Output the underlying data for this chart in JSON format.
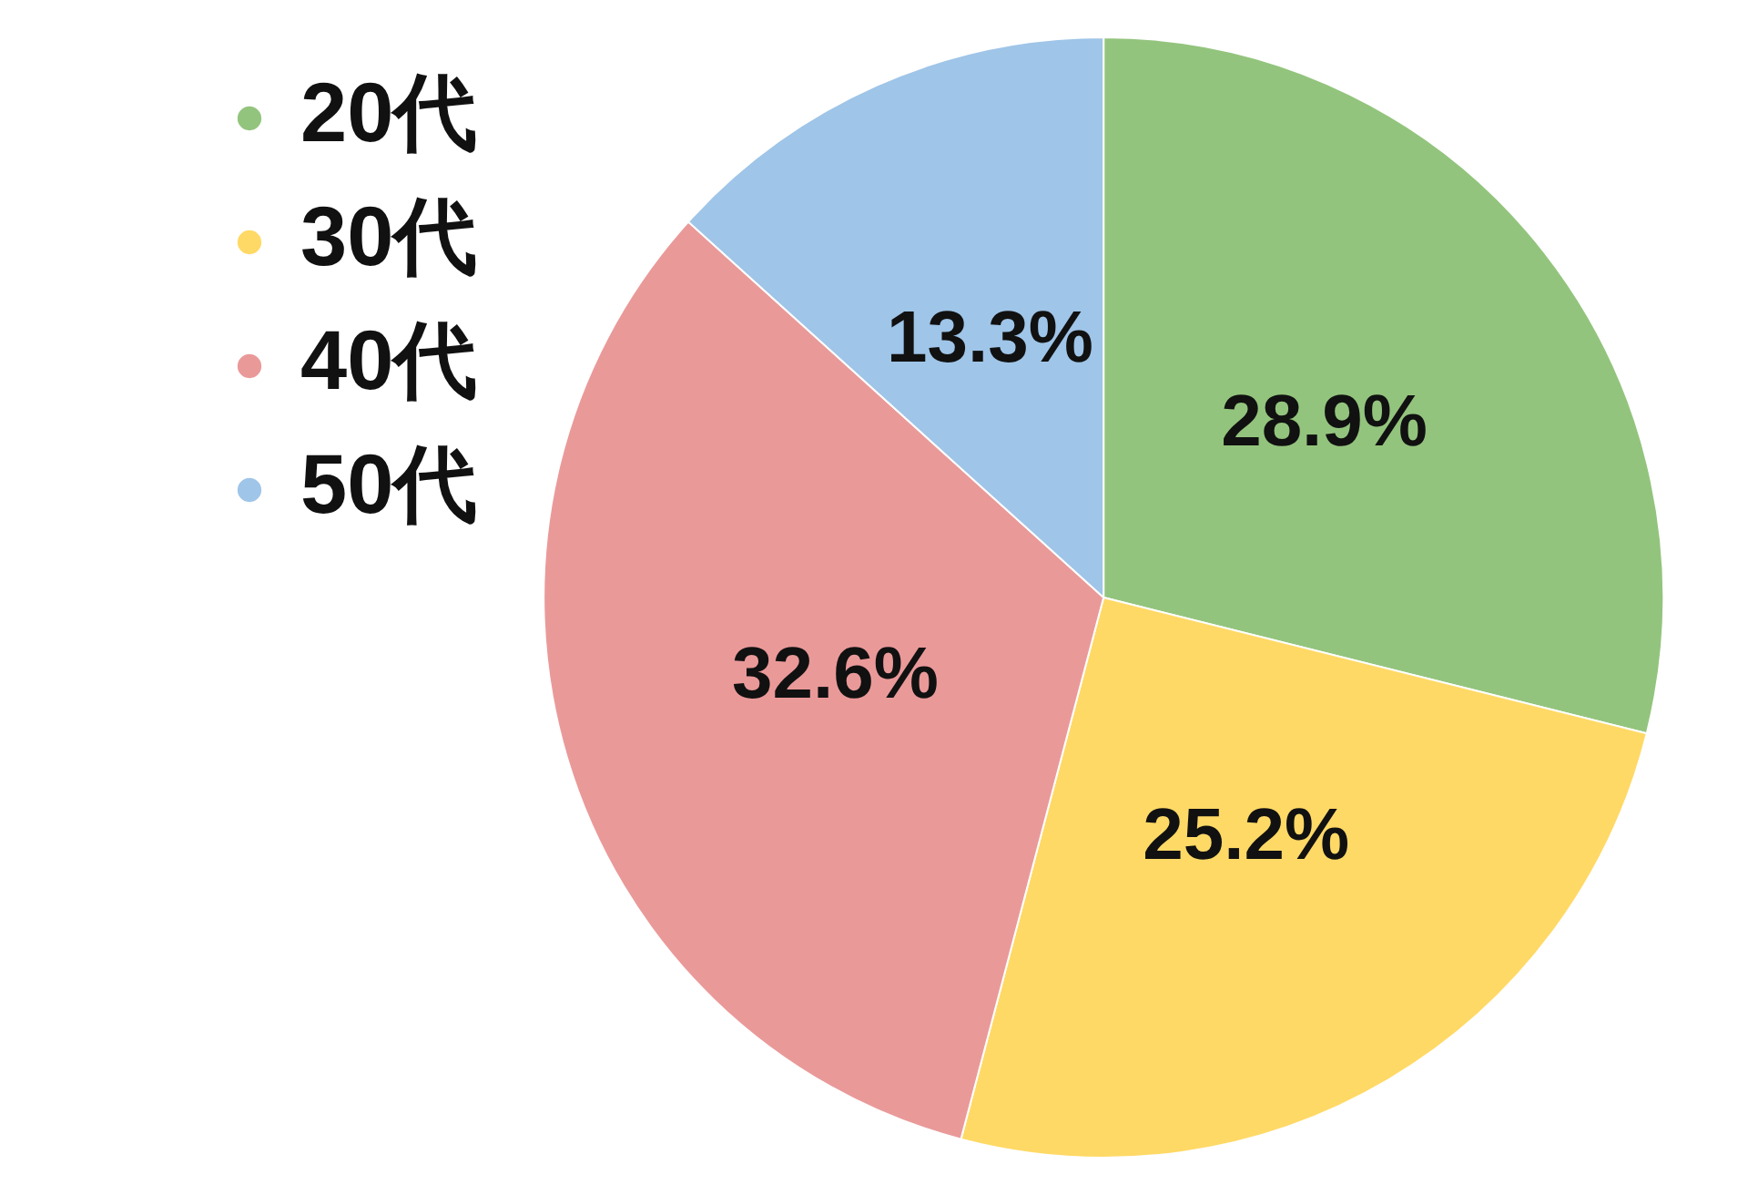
{
  "chart_data": {
    "type": "pie",
    "categories": [
      "20代",
      "30代",
      "40代",
      "50代"
    ],
    "values": [
      28.9,
      25.2,
      32.6,
      13.3
    ],
    "colors": [
      "#93c47d",
      "#ffd966",
      "#ea9999",
      "#9fc5e8"
    ],
    "value_labels": [
      "28.9%",
      "25.2%",
      "32.6%",
      "13.3%"
    ],
    "legend": "top left"
  }
}
